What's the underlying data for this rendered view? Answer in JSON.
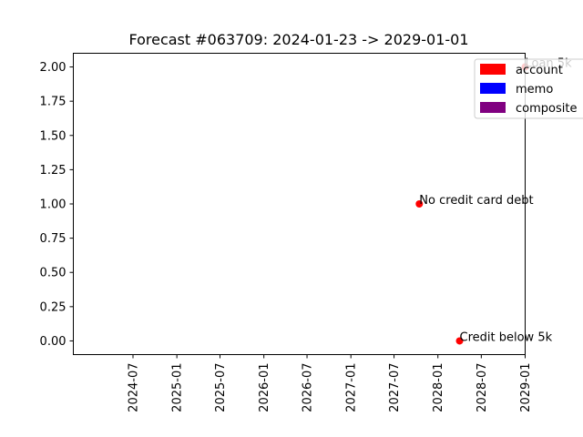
{
  "chart_data": {
    "type": "scatter",
    "title": "Forecast #063709: 2024-01-23 -> 2029-01-01",
    "xlabel": "",
    "ylabel": "",
    "x_axis": {
      "type": "date",
      "range": [
        "2024-01-23",
        "2029-01-01"
      ],
      "ticks": [
        "2024-07",
        "2025-01",
        "2025-07",
        "2026-01",
        "2026-07",
        "2027-01",
        "2027-07",
        "2028-01",
        "2028-07",
        "2029-01"
      ]
    },
    "y_axis": {
      "range": [
        -0.1,
        2.1
      ],
      "ticks": [
        "0.00",
        "0.25",
        "0.50",
        "0.75",
        "1.00",
        "1.25",
        "1.50",
        "1.75",
        "2.00"
      ]
    },
    "grid": false,
    "legend": {
      "placement": "top-right",
      "entries": [
        {
          "label": "account",
          "color": "#ff0000"
        },
        {
          "label": "memo",
          "color": "#0000ff"
        },
        {
          "label": "composite",
          "color": "#800080"
        }
      ]
    },
    "points": [
      {
        "x": "2027-10-15",
        "y": 1,
        "label": "No credit card debt",
        "color": "#ff0000"
      },
      {
        "x": "2028-04-01",
        "y": 0,
        "label": "Credit below 5k",
        "color": "#ff0000"
      },
      {
        "x": "2029-01-01",
        "y": 2,
        "label": "Loan 5k",
        "color": "#ff0000"
      }
    ]
  }
}
